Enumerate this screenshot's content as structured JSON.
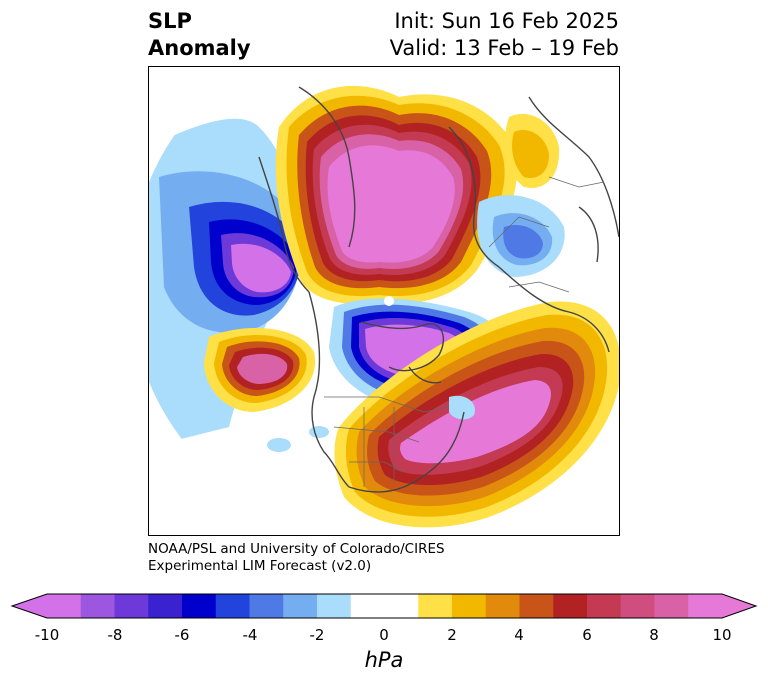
{
  "header": {
    "title_line1": "SLP",
    "title_line2": "Anomaly",
    "init_label": "Init: Sun 16 Feb 2025",
    "valid_label": "Valid: 13 Feb – 19 Feb"
  },
  "credit": {
    "line1": "NOAA/PSL and University of Colorado/CIRES",
    "line2": "Experimental LIM Forecast (v2.0)"
  },
  "colorbar": {
    "units": "hPa",
    "tick_labels": [
      "-10",
      "-8",
      "-6",
      "-4",
      "-2",
      "0",
      "2",
      "4",
      "6",
      "8",
      "10"
    ],
    "colors": [
      "#d371e9",
      "#9c56e0",
      "#6d3ad9",
      "#3a22d1",
      "#0000cc",
      "#2244dd",
      "#4f7ae6",
      "#74aef0",
      "#aadcfb",
      "#ffffff",
      "#ffffff",
      "#ffe046",
      "#f2b800",
      "#e28a0c",
      "#c85418",
      "#b22222",
      "#c43a53",
      "#d04e7f",
      "#d962a6",
      "#e678d8"
    ],
    "min_color": "#d371e9",
    "max_color": "#e678d8"
  },
  "map": {
    "projection": "north-polar-stereographic",
    "field": "sea level pressure anomaly"
  }
}
